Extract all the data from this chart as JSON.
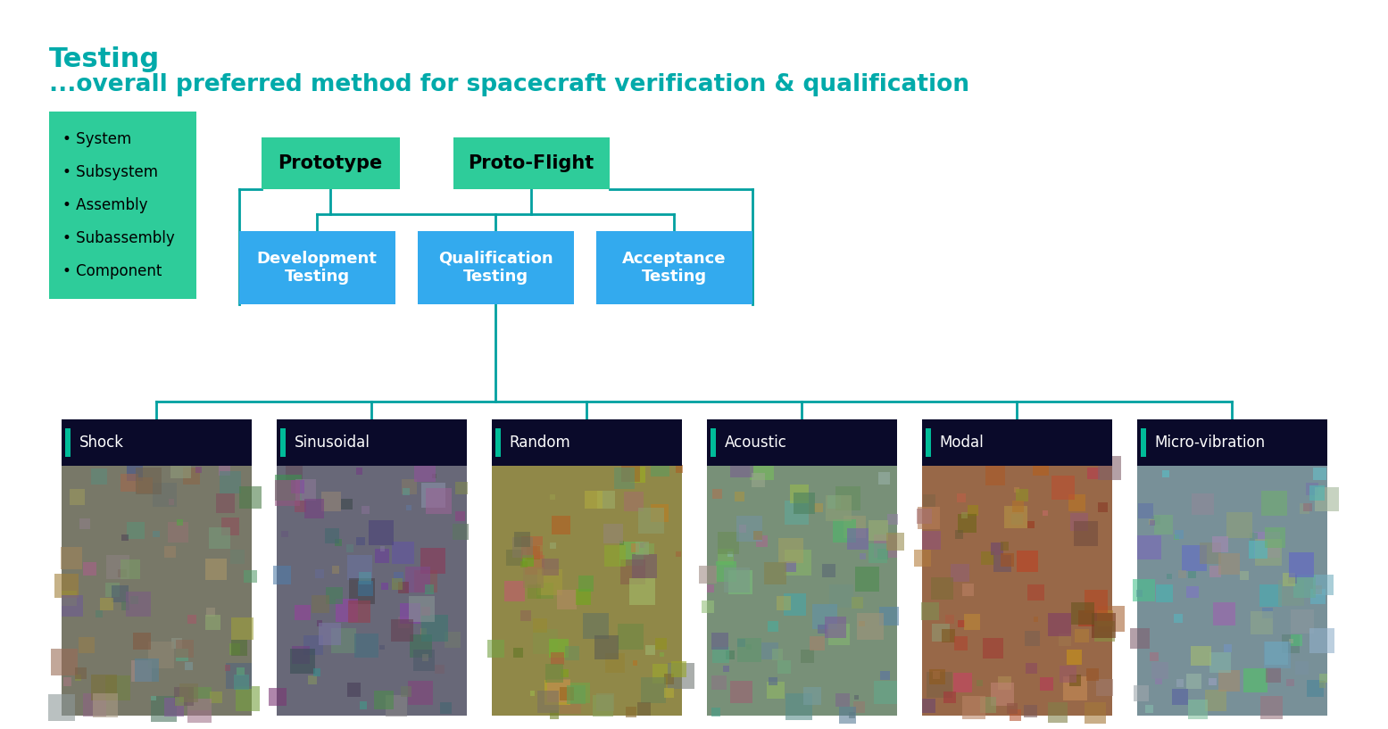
{
  "title_line1": "Testing",
  "title_line2": "...overall preferred method for spacecraft verification & qualification",
  "title_color": "#00AAAA",
  "bg_color": "#FFFFFF",
  "green_color": "#2ECC9A",
  "blue_color": "#33AAEE",
  "teal_line_color": "#00A0A0",
  "bullet_items": [
    "• System",
    "• Subsystem",
    "• Assembly",
    "• Subassembly",
    "• Component"
  ],
  "bottom_labels": [
    "Shock",
    "Sinusoidal",
    "Random",
    "Acoustic",
    "Modal",
    "Micro-vibration"
  ],
  "label_bar_bg": "#0A0A2A",
  "accent_color": "#00BB99",
  "photo_colors": [
    [
      "#8A8A7A",
      "#6A6A5A",
      "#9A9A8A"
    ],
    [
      "#7A7A8A",
      "#5A5A7A",
      "#9A8A7A"
    ],
    [
      "#8A9A6A",
      "#AAAA40",
      "#7A8A5A"
    ],
    [
      "#7A9A7A",
      "#AABBA A",
      "#6A8A7A"
    ],
    [
      "#9A7A5A",
      "#BA9A7A",
      "#7A5A3A"
    ],
    [
      "#7A8A9A",
      "#9AAABB",
      "#5A6A7A"
    ]
  ]
}
